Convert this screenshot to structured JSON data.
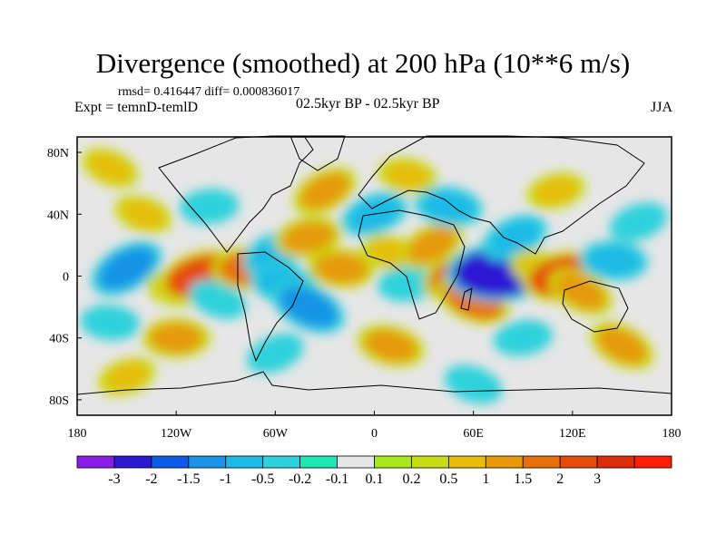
{
  "chart_data": {
    "type": "heatmap",
    "title": "Divergence (smoothed) at 200 hPa (10**6 m/s)",
    "stats_line": "rmsd= 0.416447 diff= 0.000836017",
    "experiment_label": "Expt = temnD-temlD",
    "period_label": "02.5kyr BP - 02.5kyr BP",
    "season": "JJA",
    "projection": "cylindrical equidistant",
    "xlim": [
      -180,
      180
    ],
    "ylim": [
      -90,
      90
    ],
    "x_ticks": [
      {
        "value": -180,
        "label": "180"
      },
      {
        "value": -120,
        "label": "120W"
      },
      {
        "value": -60,
        "label": "60W"
      },
      {
        "value": 0,
        "label": "0"
      },
      {
        "value": 60,
        "label": "60E"
      },
      {
        "value": 120,
        "label": "120E"
      },
      {
        "value": 180,
        "label": "180"
      }
    ],
    "y_ticks": [
      {
        "value": 80,
        "label": "80N"
      },
      {
        "value": 40,
        "label": "40N"
      },
      {
        "value": 0,
        "label": "0"
      },
      {
        "value": -40,
        "label": "40S"
      },
      {
        "value": -80,
        "label": "80S"
      }
    ],
    "colorbar": {
      "colors": [
        "#8a1ee6",
        "#2d18d2",
        "#0a5ae6",
        "#1994e6",
        "#1ebae6",
        "#2dd2dc",
        "#20e6b4",
        "#e6e6e6",
        "#a8e61e",
        "#c8dc14",
        "#e6be0a",
        "#e69a0a",
        "#e6700a",
        "#e64b0a",
        "#dc2d0a",
        "#ff1e0a"
      ],
      "levels": [
        "-3",
        "-2",
        "-1.5",
        "-1",
        "-0.5",
        "-0.2",
        "-0.1",
        "0.1",
        "0.2",
        "0.5",
        "1",
        "1.5",
        "2",
        "3"
      ]
    },
    "anomaly_centers": [
      {
        "lon": -150,
        "lat": 5,
        "value": -1.5
      },
      {
        "lon": -120,
        "lat": -8,
        "value": 0.5
      },
      {
        "lon": -105,
        "lat": 0,
        "value": 2.0
      },
      {
        "lon": -95,
        "lat": -15,
        "value": -0.5
      },
      {
        "lon": -75,
        "lat": 5,
        "value": 1.5
      },
      {
        "lon": -60,
        "lat": 15,
        "value": -1.0
      },
      {
        "lon": -55,
        "lat": -5,
        "value": -1.0
      },
      {
        "lon": -40,
        "lat": 25,
        "value": 1.0
      },
      {
        "lon": -40,
        "lat": -20,
        "value": -1.5
      },
      {
        "lon": -20,
        "lat": 5,
        "value": 1.0
      },
      {
        "lon": 0,
        "lat": 40,
        "value": -1.0
      },
      {
        "lon": 10,
        "lat": 15,
        "value": 0.5
      },
      {
        "lon": 20,
        "lat": -5,
        "value": -0.5
      },
      {
        "lon": 35,
        "lat": 20,
        "value": 1.0
      },
      {
        "lon": 45,
        "lat": 45,
        "value": -1.0
      },
      {
        "lon": 55,
        "lat": 0,
        "value": 2.0
      },
      {
        "lon": 60,
        "lat": -15,
        "value": 1.5
      },
      {
        "lon": 75,
        "lat": 2,
        "value": -3.0
      },
      {
        "lon": 85,
        "lat": 25,
        "value": -1.0
      },
      {
        "lon": 100,
        "lat": 5,
        "value": 0.5
      },
      {
        "lon": 115,
        "lat": 0,
        "value": 2.0
      },
      {
        "lon": 125,
        "lat": -10,
        "value": 1.0
      },
      {
        "lon": 145,
        "lat": 10,
        "value": -1.0
      },
      {
        "lon": 160,
        "lat": 35,
        "value": -0.5
      },
      {
        "lon": -140,
        "lat": 40,
        "value": 0.5
      },
      {
        "lon": -100,
        "lat": 45,
        "value": -0.5
      },
      {
        "lon": -30,
        "lat": 55,
        "value": 1.0
      },
      {
        "lon": 20,
        "lat": 65,
        "value": 0.5
      },
      {
        "lon": 110,
        "lat": 55,
        "value": 0.5
      },
      {
        "lon": -160,
        "lat": 70,
        "value": 0.5
      },
      {
        "lon": -120,
        "lat": -40,
        "value": 1.0
      },
      {
        "lon": -60,
        "lat": -50,
        "value": -0.5
      },
      {
        "lon": 10,
        "lat": -45,
        "value": 1.0
      },
      {
        "lon": 90,
        "lat": -40,
        "value": -0.5
      },
      {
        "lon": 150,
        "lat": -45,
        "value": 1.0
      },
      {
        "lon": -160,
        "lat": -30,
        "value": -0.5
      },
      {
        "lon": -150,
        "lat": -65,
        "value": 0.5
      },
      {
        "lon": 60,
        "lat": -70,
        "value": -0.5
      }
    ]
  }
}
